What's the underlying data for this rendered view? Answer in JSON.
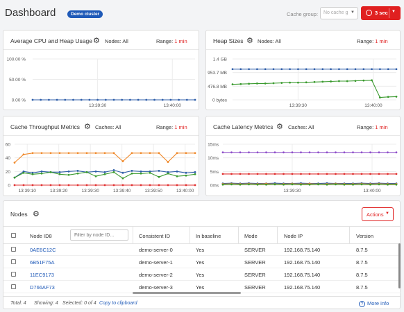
{
  "header": {
    "title": "Dashboard",
    "cluster_badge": "Demo cluster",
    "cache_group_label": "Cache group:",
    "cache_group_value": "No cache g",
    "refresh_label": "3 sec"
  },
  "charts": {
    "cpu": {
      "title": "Average CPU and Heap Usage",
      "sub_label": "Nodes: All",
      "range_label": "Range:",
      "range_value": "1 min"
    },
    "heap": {
      "title": "Heap Sizes",
      "sub_label": "Nodes: All",
      "range_label": "Range:",
      "range_value": "1 min"
    },
    "throughput": {
      "title": "Cache Throughput Metrics",
      "sub_label": "Caches: All",
      "range_label": "Range:",
      "range_value": "1 min"
    },
    "latency": {
      "title": "Cache Latency Metrics",
      "sub_label": "Caches: All",
      "range_label": "Range:",
      "range_value": "1 min"
    }
  },
  "chart_data": [
    {
      "type": "line",
      "y_ticks": [
        "100.00 %",
        "50.00 %",
        "0.00 %"
      ],
      "ylim": [
        0,
        100
      ],
      "x_ticks": [
        "13:39:30",
        "13:40:00"
      ],
      "series": [
        {
          "color": "#2f5ea8",
          "values": [
            0,
            0,
            0,
            0,
            0,
            0,
            0,
            0,
            0,
            0,
            0,
            0,
            0,
            0,
            0,
            0,
            0,
            0,
            0,
            0,
            0
          ]
        }
      ]
    },
    {
      "type": "line",
      "y_ticks": [
        "1.4 GB",
        "953.7 MB",
        "476.8 MB",
        "0 bytes"
      ],
      "ylim": [
        0,
        1.4
      ],
      "x_ticks": [
        "13:39:30",
        "13:40:00"
      ],
      "series": [
        {
          "color": "#2f5ea8",
          "values": [
            1.05,
            1.05,
            1.05,
            1.05,
            1.05,
            1.05,
            1.05,
            1.05,
            1.05,
            1.05,
            1.05,
            1.05,
            1.05,
            1.05,
            1.05,
            1.05,
            1.05,
            1.05,
            1.05,
            1.05,
            1.05
          ]
        },
        {
          "color": "#3a9a2e",
          "values": [
            0.53,
            0.54,
            0.55,
            0.56,
            0.56,
            0.57,
            0.58,
            0.59,
            0.59,
            0.6,
            0.61,
            0.62,
            0.63,
            0.64,
            0.64,
            0.65,
            0.66,
            0.67,
            0.08,
            0.1,
            0.11
          ]
        }
      ]
    },
    {
      "type": "line",
      "y_ticks": [
        "60",
        "40",
        "20",
        "0"
      ],
      "ylim": [
        0,
        60
      ],
      "x_ticks": [
        "13:39:10",
        "13:39:20",
        "13:39:30",
        "13:39:40",
        "13:39:50",
        "13:40:00"
      ],
      "series": [
        {
          "color": "#f08a2c",
          "values": [
            33,
            45,
            47,
            47,
            47,
            47,
            47,
            47,
            47,
            47,
            47,
            47,
            35,
            47,
            47,
            47,
            47,
            34,
            47,
            47,
            47
          ]
        },
        {
          "color": "#2f5ea8",
          "values": [
            11,
            20,
            18,
            20,
            19,
            19,
            20,
            21,
            19,
            20,
            19,
            22,
            18,
            21,
            20,
            20,
            21,
            19,
            20,
            18,
            19
          ]
        },
        {
          "color": "#3a9a2e",
          "values": [
            11,
            18,
            16,
            17,
            19,
            16,
            15,
            17,
            19,
            13,
            16,
            19,
            10,
            17,
            17,
            18,
            12,
            17,
            13,
            14,
            16
          ]
        },
        {
          "color": "#e03030",
          "values": [
            0,
            0,
            0,
            0,
            0,
            0,
            0,
            0,
            0,
            0,
            0,
            0,
            0,
            0,
            0,
            0,
            0,
            0,
            0,
            0,
            0
          ]
        }
      ]
    },
    {
      "type": "line",
      "y_ticks": [
        "15ms",
        "10ms",
        "5ms",
        "0ms"
      ],
      "ylim": [
        0,
        15
      ],
      "x_ticks": [
        "13:39:30",
        "13:40:00"
      ],
      "series": [
        {
          "color": "#8e4fc9",
          "values": [
            12,
            12,
            12,
            12,
            12,
            12,
            12,
            12,
            12,
            12,
            12,
            12,
            12,
            12,
            12,
            12,
            12,
            12,
            12,
            12,
            12
          ]
        },
        {
          "color": "#e03030",
          "values": [
            4.1,
            4.1,
            4.1,
            4.1,
            4.1,
            4.1,
            4.1,
            4.1,
            4.1,
            4.1,
            4.1,
            4.1,
            4.1,
            4.1,
            4.1,
            4.1,
            4.1,
            4.1,
            4.1,
            4.1,
            4.1
          ]
        },
        {
          "color": "#2f5ea8",
          "values": [
            0.6,
            0.7,
            0.6,
            0.7,
            0.6,
            0.6,
            0.7,
            0.6,
            0.6,
            0.7,
            0.6,
            0.6,
            0.7,
            0.6,
            0.6,
            0.6,
            0.7,
            0.6,
            0.7,
            0.6,
            0.6
          ]
        },
        {
          "color": "#f08a2c",
          "values": [
            0.4,
            0.5,
            0.4,
            0.5,
            0.4,
            0.5,
            0.4,
            0.4,
            0.5,
            0.4,
            0.5,
            0.4,
            0.4,
            0.5,
            0.4,
            0.4,
            0.5,
            0.4,
            0.5,
            0.4,
            0.4
          ]
        },
        {
          "color": "#3a9a2e",
          "values": [
            0.2,
            0.3,
            0.2,
            0.3,
            0.2,
            0.2,
            0.3,
            0.2,
            0.3,
            0.2,
            0.2,
            0.3,
            0.2,
            0.3,
            0.2,
            0.2,
            0.3,
            0.2,
            0.3,
            0.2,
            0.2
          ]
        }
      ]
    }
  ],
  "nodes": {
    "title": "Nodes",
    "actions_label": "Actions",
    "filter_placeholder": "Filter by node ID...",
    "columns": [
      "Node ID8",
      "Consistent ID",
      "In baseline",
      "Mode",
      "Node IP",
      "Version"
    ],
    "rows": [
      {
        "id8": "0AE6C12C",
        "consistent_id": "demo-server-0",
        "baseline": "Yes",
        "mode": "SERVER",
        "ip": "192.168.75.140",
        "version": "8.7.5"
      },
      {
        "id8": "6B51F75A",
        "consistent_id": "demo-server-1",
        "baseline": "Yes",
        "mode": "SERVER",
        "ip": "192.168.75.140",
        "version": "8.7.5"
      },
      {
        "id8": "11EC9173",
        "consistent_id": "demo-server-2",
        "baseline": "Yes",
        "mode": "SERVER",
        "ip": "192.168.75.140",
        "version": "8.7.5"
      },
      {
        "id8": "D766AF73",
        "consistent_id": "demo-server-3",
        "baseline": "Yes",
        "mode": "SERVER",
        "ip": "192.168.75.140",
        "version": "8.7.5"
      }
    ],
    "footer": {
      "total": "Total: 4",
      "showing": "Showing: 4",
      "selected": "Selected: 0 of 4",
      "copy": "Copy to clipboard",
      "more_info": "More info"
    }
  }
}
